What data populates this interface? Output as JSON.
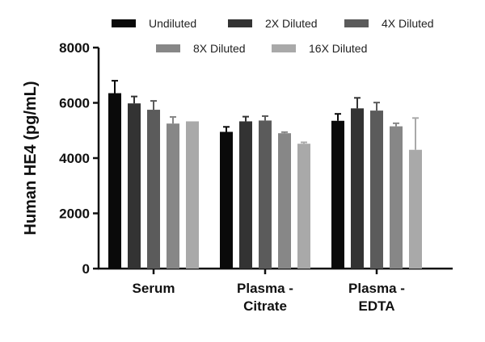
{
  "chart_data": {
    "type": "bar",
    "title": "",
    "xlabel": "",
    "ylabel": "Human HE4 (pg/mL)",
    "ylim": [
      0,
      8000
    ],
    "yticks": [
      0,
      2000,
      4000,
      6000,
      8000
    ],
    "categories": [
      [
        "Serum"
      ],
      [
        "Plasma -",
        "Citrate"
      ],
      [
        "Plasma -",
        "EDTA"
      ]
    ],
    "legend_position": "top",
    "grid": false,
    "series": [
      {
        "name": "Undiluted",
        "color": "#0a0a0a",
        "values": [
          6350,
          4950,
          5350
        ],
        "errors": [
          450,
          180,
          250
        ]
      },
      {
        "name": "2X Diluted",
        "color": "#333333",
        "values": [
          5980,
          5330,
          5800
        ],
        "errors": [
          250,
          170,
          380
        ]
      },
      {
        "name": "4X Diluted",
        "color": "#5b5b5b",
        "values": [
          5750,
          5360,
          5720
        ],
        "errors": [
          320,
          160,
          290
        ]
      },
      {
        "name": "8X Diluted",
        "color": "#878787",
        "values": [
          5250,
          4900,
          5150
        ],
        "errors": [
          240,
          40,
          110
        ]
      },
      {
        "name": "16X Diluted",
        "color": "#a9a9a9",
        "values": [
          5330,
          4520,
          4300
        ],
        "errors": [
          0,
          50,
          1150
        ]
      }
    ]
  }
}
